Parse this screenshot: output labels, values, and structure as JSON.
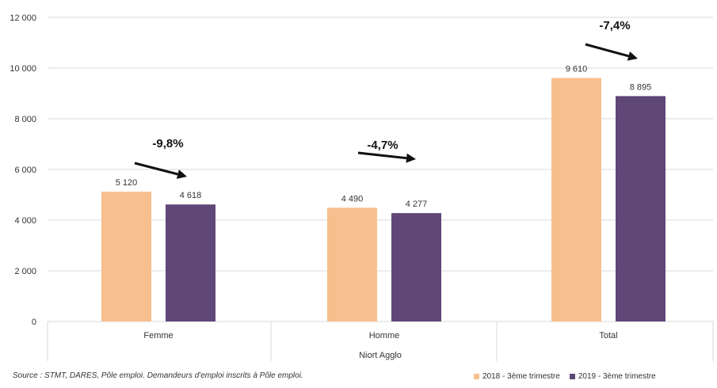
{
  "chart_data": {
    "type": "bar",
    "group_label": "Niort Agglo",
    "categories": [
      "Femme",
      "Homme",
      "Total"
    ],
    "series": [
      {
        "name": "2018 - 3ème trimestre",
        "color": "#F8BF8E",
        "values": [
          5120,
          4490,
          9610
        ],
        "labels": [
          "5 120",
          "4 490",
          "9 610"
        ]
      },
      {
        "name": "2019 - 3ème trimestre",
        "color": "#5F4778",
        "values": [
          4618,
          4277,
          8895
        ],
        "labels": [
          "4 618",
          "4 277",
          "8 895"
        ]
      }
    ],
    "changes": [
      "-9,8%",
      "-4,7%",
      "-7,4%"
    ],
    "ylim": [
      0,
      12000
    ],
    "yticks": [
      0,
      2000,
      4000,
      6000,
      8000,
      10000,
      12000
    ],
    "ytick_labels": [
      "0",
      "2 000",
      "4 000",
      "6 000",
      "8 000",
      "10 000",
      "12 000"
    ],
    "grid": true,
    "legend_position": "bottom-right"
  },
  "source": "Source : STMT, DARES, Pôle emploi. Demandeurs d'emploi inscrits à Pôle emploi."
}
